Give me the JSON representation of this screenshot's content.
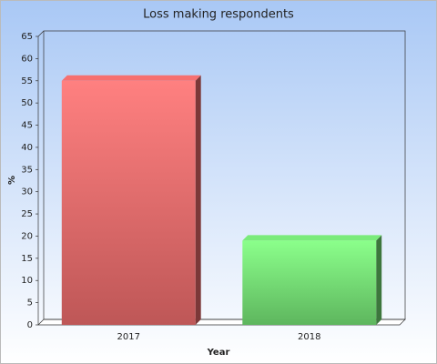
{
  "chart_data": {
    "type": "bar",
    "title": "Loss making respondents",
    "x_label": "Year",
    "y_label": "%",
    "categories": [
      "2017",
      "2018"
    ],
    "values": [
      55,
      19
    ],
    "colors": [
      "#e06666",
      "#6fd66f"
    ],
    "ylim": [
      0,
      65
    ],
    "yticks": [
      0,
      5,
      10,
      15,
      20,
      25,
      30,
      35,
      40,
      45,
      50,
      55,
      60,
      65
    ],
    "grid": false
  }
}
